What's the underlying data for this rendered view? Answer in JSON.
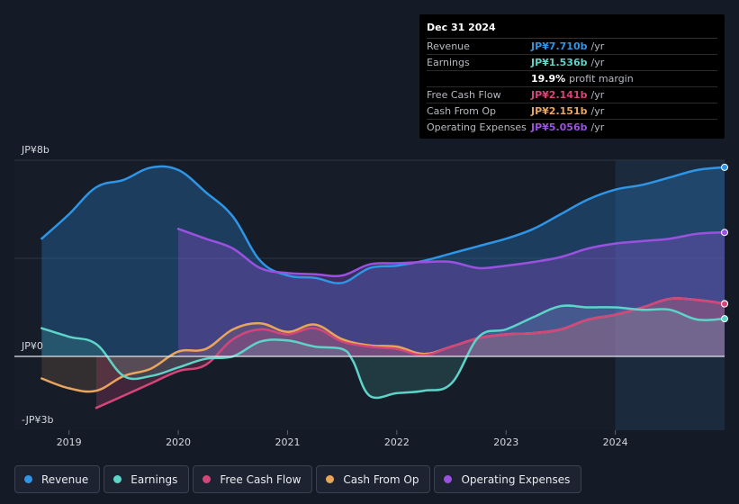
{
  "tooltip": {
    "date": "Dec 31 2024",
    "rows": [
      {
        "label": "Revenue",
        "value": "JP¥7.710b",
        "unit": "/yr",
        "color": "#2f95e6"
      },
      {
        "label": "Earnings",
        "value": "JP¥1.536b",
        "unit": "/yr",
        "color": "#5ed3c8"
      },
      {
        "label": "",
        "value": "19.9%",
        "unit": "profit margin",
        "color": "#ffffff"
      },
      {
        "label": "Free Cash Flow",
        "value": "JP¥2.141b",
        "unit": "/yr",
        "color": "#d4467a"
      },
      {
        "label": "Cash From Op",
        "value": "JP¥2.151b",
        "unit": "/yr",
        "color": "#e9a55c"
      },
      {
        "label": "Operating Expenses",
        "value": "JP¥5.056b",
        "unit": "/yr",
        "color": "#9b51e0"
      }
    ]
  },
  "legend": [
    {
      "label": "Revenue",
      "color": "#2f95e6"
    },
    {
      "label": "Earnings",
      "color": "#5ed3c8"
    },
    {
      "label": "Free Cash Flow",
      "color": "#d4467a"
    },
    {
      "label": "Cash From Op",
      "color": "#e9a55c"
    },
    {
      "label": "Operating Expenses",
      "color": "#9b51e0"
    }
  ],
  "chart_data": {
    "type": "area",
    "title": "",
    "xlabel": "",
    "ylabel": "",
    "ylim": [
      -3,
      8
    ],
    "y_tick_labels": [
      "JP¥8b",
      "JP¥0",
      "-JP¥3b"
    ],
    "y_tick_values": [
      8,
      0,
      -3
    ],
    "x_tick_labels": [
      "2019",
      "2020",
      "2021",
      "2022",
      "2023",
      "2024"
    ],
    "x_tick_values": [
      2019,
      2020,
      2021,
      2022,
      2023,
      2024
    ],
    "xlim": [
      2018.5,
      2025.0
    ],
    "highlight_start": 2024.0,
    "series": [
      {
        "name": "Revenue",
        "color": "#2f95e6",
        "x": [
          2018.75,
          2019.0,
          2019.25,
          2019.5,
          2019.75,
          2020.0,
          2020.25,
          2020.5,
          2020.75,
          2021.0,
          2021.25,
          2021.5,
          2021.75,
          2022.0,
          2022.25,
          2022.5,
          2022.75,
          2023.0,
          2023.25,
          2023.5,
          2023.75,
          2024.0,
          2024.25,
          2024.5,
          2024.75,
          2025.0
        ],
        "y": [
          4.8,
          5.8,
          6.9,
          7.2,
          7.7,
          7.6,
          6.7,
          5.7,
          3.9,
          3.3,
          3.2,
          3.0,
          3.6,
          3.7,
          3.9,
          4.2,
          4.5,
          4.8,
          5.2,
          5.8,
          6.4,
          6.8,
          7.0,
          7.3,
          7.6,
          7.71
        ]
      },
      {
        "name": "Operating Expenses",
        "color": "#9b51e0",
        "x": [
          2020.0,
          2020.25,
          2020.5,
          2020.75,
          2021.0,
          2021.25,
          2021.5,
          2021.75,
          2022.0,
          2022.25,
          2022.5,
          2022.75,
          2023.0,
          2023.25,
          2023.5,
          2023.75,
          2024.0,
          2024.25,
          2024.5,
          2024.75,
          2025.0
        ],
        "y": [
          5.2,
          4.8,
          4.4,
          3.6,
          3.4,
          3.35,
          3.3,
          3.75,
          3.8,
          3.85,
          3.85,
          3.6,
          3.7,
          3.85,
          4.05,
          4.4,
          4.6,
          4.7,
          4.8,
          5.0,
          5.056
        ]
      },
      {
        "name": "Cash From Op",
        "color": "#e9a55c",
        "x": [
          2018.75,
          2019.0,
          2019.25,
          2019.5,
          2019.75,
          2020.0,
          2020.25,
          2020.5,
          2020.75,
          2021.0,
          2021.25,
          2021.5,
          2021.75,
          2022.0,
          2022.25,
          2022.5,
          2022.75,
          2023.0,
          2023.25,
          2023.5,
          2023.75,
          2024.0,
          2024.25,
          2024.5,
          2024.75,
          2025.0
        ],
        "y": [
          -0.9,
          -1.3,
          -1.4,
          -0.8,
          -0.5,
          0.2,
          0.3,
          1.1,
          1.35,
          1.0,
          1.3,
          0.7,
          0.45,
          0.4,
          0.1,
          0.4,
          0.75,
          0.9,
          0.95,
          1.1,
          1.5,
          1.7,
          2.0,
          2.35,
          2.3,
          2.151
        ]
      },
      {
        "name": "Free Cash Flow",
        "color": "#d4467a",
        "x": [
          2019.25,
          2019.5,
          2019.75,
          2020.0,
          2020.25,
          2020.5,
          2020.75,
          2021.0,
          2021.25,
          2021.5,
          2021.75,
          2022.0,
          2022.25,
          2022.5,
          2022.75,
          2023.0,
          2023.25,
          2023.5,
          2023.75,
          2024.0,
          2024.25,
          2024.5,
          2024.75,
          2025.0
        ],
        "y": [
          -2.1,
          -1.6,
          -1.1,
          -0.6,
          -0.35,
          0.7,
          1.1,
          0.9,
          1.15,
          0.6,
          0.4,
          0.3,
          0.05,
          0.4,
          0.75,
          0.9,
          0.95,
          1.1,
          1.5,
          1.7,
          2.0,
          2.35,
          2.3,
          2.141
        ]
      },
      {
        "name": "Earnings",
        "color": "#5ed3c8",
        "x": [
          2018.75,
          2019.0,
          2019.25,
          2019.5,
          2019.75,
          2020.0,
          2020.25,
          2020.5,
          2020.75,
          2021.0,
          2021.25,
          2021.5,
          2021.6,
          2021.75,
          2022.0,
          2022.25,
          2022.5,
          2022.75,
          2023.0,
          2023.25,
          2023.5,
          2023.75,
          2024.0,
          2024.25,
          2024.5,
          2024.75,
          2025.0
        ],
        "y": [
          1.15,
          0.8,
          0.5,
          -0.8,
          -0.8,
          -0.45,
          -0.1,
          0.0,
          0.6,
          0.65,
          0.4,
          0.3,
          -0.2,
          -1.6,
          -1.5,
          -1.4,
          -1.1,
          0.8,
          1.1,
          1.6,
          2.05,
          2.0,
          2.0,
          1.9,
          1.9,
          1.5,
          1.536
        ]
      }
    ]
  }
}
